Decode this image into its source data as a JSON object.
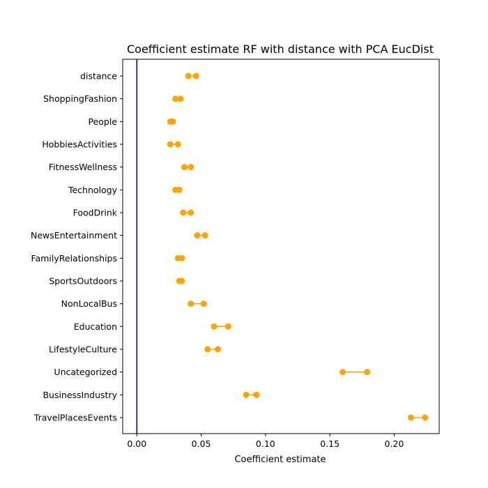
{
  "chart_data": {
    "type": "dumbbell",
    "title": "Coefficient estimate RF  with distance with PCA EucDist",
    "xlabel": "Coefficient estimate",
    "ylabel": "",
    "xlim": [
      -0.011,
      0.235
    ],
    "xticks": [
      "0.00",
      "0.05",
      "0.10",
      "0.15",
      "0.20"
    ],
    "xtick_values": [
      0.0,
      0.05,
      0.1,
      0.15,
      0.2
    ],
    "reference_line": {
      "x": 0.0,
      "color": "#0000cc"
    },
    "marker_color": "#ffa500",
    "grid": false,
    "categories": [
      "distance",
      "ShoppingFashion",
      "People",
      "HobbiesActivities",
      "FitnessWellness",
      "Technology",
      "FoodDrink",
      "NewsEntertainment",
      "FamilyRelationships",
      "SportsOutdoors",
      "NonLocalBus",
      "Education",
      "LifestyleCulture",
      "Uncategorized",
      "BusinessIndustry",
      "TravelPlacesEvents"
    ],
    "low": [
      0.04,
      0.03,
      0.026,
      0.026,
      0.037,
      0.03,
      0.036,
      0.047,
      0.032,
      0.033,
      0.042,
      0.06,
      0.055,
      0.16,
      0.085,
      0.213
    ],
    "high": [
      0.046,
      0.034,
      0.028,
      0.032,
      0.042,
      0.033,
      0.042,
      0.053,
      0.035,
      0.035,
      0.052,
      0.071,
      0.063,
      0.179,
      0.093,
      0.224
    ]
  }
}
